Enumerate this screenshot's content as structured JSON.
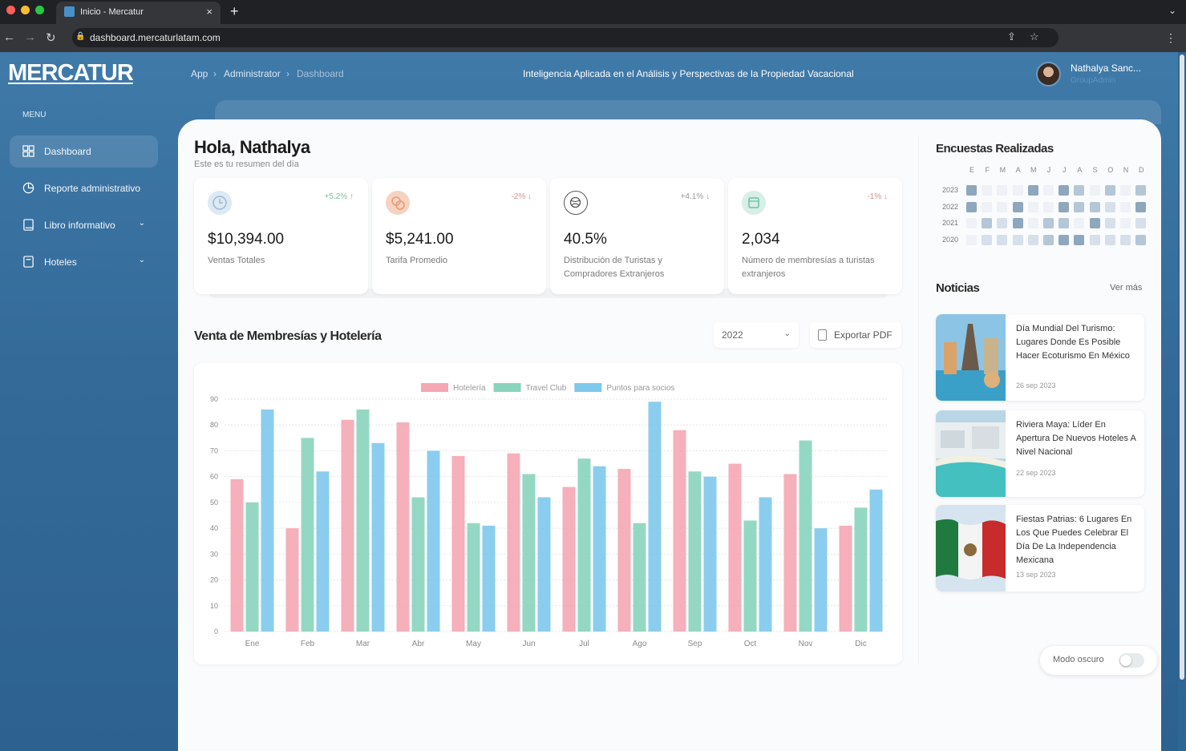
{
  "browser": {
    "tab_title": "Inicio - Mercatur",
    "tab_close": "×",
    "new_tab": "+",
    "url": "dashboard.mercaturlatam.com"
  },
  "sidebar": {
    "logo": "MERCATUR",
    "menu_label": "MENU",
    "items": [
      {
        "label": "Dashboard",
        "icon": "grid-icon",
        "active": true,
        "has_chevron": false
      },
      {
        "label": "Reporte administrativo",
        "icon": "pie-chart-icon",
        "active": false,
        "has_chevron": false
      },
      {
        "label": "Libro informativo",
        "icon": "book-icon",
        "active": false,
        "has_chevron": true
      },
      {
        "label": "Hoteles",
        "icon": "hotel-icon",
        "active": false,
        "has_chevron": true
      }
    ]
  },
  "header": {
    "breadcrumb": [
      "App",
      "Administrator",
      "Dashboard"
    ],
    "tagline": "Inteligencia Aplicada en el Análisis y Perspectivas de la Propiedad Vacacional",
    "user_name": "Nathalya Sanc...",
    "user_role": "GroupAdmin"
  },
  "greeting": {
    "title": "Hola, Nathalya",
    "subtitle": "Este es tu resumen del día"
  },
  "stats": [
    {
      "value": "$10,394.00",
      "label": "Ventas Totales",
      "delta": "+5.2% ↑",
      "delta_color": "#7fbf9a",
      "icon": "clock-icon",
      "icon_bg": "#dde9f3"
    },
    {
      "value": "$5,241.00",
      "label": "Tarifa Promedio",
      "delta": "-2% ↓",
      "delta_color": "#e0908a",
      "icon": "coins-icon",
      "icon_bg": "#f6d2c0"
    },
    {
      "value": "40.5%",
      "label": "Distribución de Turistas y Compradores Extranjeros",
      "delta": "+4.1% ↓",
      "delta_color": "#999999",
      "icon": "globe-icon",
      "icon_bg": "#ffffff"
    },
    {
      "value": "2,034",
      "label": "Número de membresías a turistas extranjeros",
      "delta": "-1% ↓",
      "delta_color": "#e0908a",
      "icon": "calendar-icon",
      "icon_bg": "#d7efe6"
    }
  ],
  "sales_section": {
    "title": "Venta de Membresías y Hotelería",
    "year": "2022",
    "export_label": "Exportar PDF"
  },
  "chart_data": {
    "type": "bar",
    "categories": [
      "Ene",
      "Feb",
      "Mar",
      "Abr",
      "May",
      "Jun",
      "Jul",
      "Ago",
      "Sep",
      "Oct",
      "Nov",
      "Dic"
    ],
    "series": [
      {
        "name": "Hotelería",
        "color": "#f4a7b4",
        "values": [
          59,
          40,
          82,
          81,
          68,
          69,
          56,
          63,
          78,
          65,
          61,
          41
        ]
      },
      {
        "name": "Travel Club",
        "color": "#88d4bc",
        "values": [
          50,
          75,
          86,
          52,
          42,
          61,
          67,
          42,
          62,
          43,
          74,
          48
        ]
      },
      {
        "name": "Puntos para socios",
        "color": "#7ec8ec",
        "values": [
          86,
          62,
          73,
          70,
          41,
          52,
          64,
          89,
          60,
          52,
          40,
          55
        ]
      }
    ],
    "ylim": [
      0,
      90
    ],
    "yticks": [
      0,
      10,
      20,
      30,
      40,
      50,
      60,
      70,
      80,
      90
    ],
    "grid": true,
    "legend": "top-center"
  },
  "surveys": {
    "title": "Encuestas Realizadas",
    "months": [
      "E",
      "F",
      "M",
      "A",
      "M",
      "J",
      "J",
      "A",
      "S",
      "O",
      "N",
      "D"
    ],
    "years": [
      {
        "year": "2023",
        "levels": [
          3,
          0,
          0,
          0,
          3,
          0,
          3,
          2,
          0,
          2,
          0,
          2
        ]
      },
      {
        "year": "2022",
        "levels": [
          3,
          0,
          0,
          3,
          0,
          0,
          3,
          2,
          2,
          1,
          0,
          3
        ]
      },
      {
        "year": "2021",
        "levels": [
          0,
          2,
          1,
          3,
          0,
          2,
          2,
          0,
          3,
          1,
          0,
          1
        ]
      },
      {
        "year": "2020",
        "levels": [
          0,
          1,
          1,
          1,
          1,
          2,
          3,
          3,
          1,
          1,
          1,
          2
        ]
      }
    ],
    "level_colors": [
      "#eef1f5",
      "#d7e0ea",
      "#b5c6d6",
      "#8ea7bd"
    ]
  },
  "news": {
    "title": "Noticias",
    "more": "Ver más",
    "items": [
      {
        "headline": "Día Mundial Del Turismo: Lugares Donde Es Posible Hacer Ecoturismo En México",
        "date": "26 sep 2023",
        "image": "landmarks-collage-image"
      },
      {
        "headline": "Riviera Maya: Líder En Apertura De Nuevos Hoteles A Nivel Nacional",
        "date": "22 sep 2023",
        "image": "beach-resort-image"
      },
      {
        "headline": "Fiestas Patrias: 6 Lugares En Los Que Puedes Celebrar El Día De La Independencia Mexicana",
        "date": "13 sep 2023",
        "image": "mexican-flag-image"
      }
    ]
  },
  "dark_mode": {
    "label": "Modo oscuro",
    "enabled": false
  }
}
